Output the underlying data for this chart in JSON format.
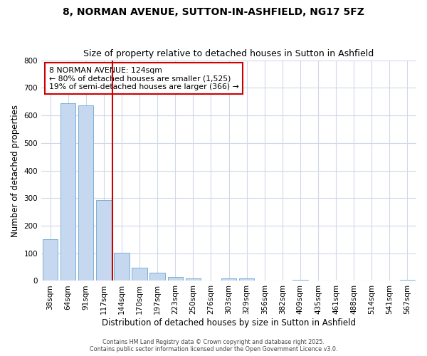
{
  "title1": "8, NORMAN AVENUE, SUTTON-IN-ASHFIELD, NG17 5FZ",
  "title2": "Size of property relative to detached houses in Sutton in Ashfield",
  "xlabel": "Distribution of detached houses by size in Sutton in Ashfield",
  "ylabel": "Number of detached properties",
  "categories": [
    "38sqm",
    "64sqm",
    "91sqm",
    "117sqm",
    "144sqm",
    "170sqm",
    "197sqm",
    "223sqm",
    "250sqm",
    "276sqm",
    "303sqm",
    "329sqm",
    "356sqm",
    "382sqm",
    "409sqm",
    "435sqm",
    "461sqm",
    "488sqm",
    "514sqm",
    "541sqm",
    "567sqm"
  ],
  "values": [
    150,
    645,
    635,
    293,
    103,
    48,
    30,
    13,
    8,
    0,
    8,
    8,
    0,
    0,
    3,
    0,
    0,
    0,
    0,
    0,
    5
  ],
  "bar_color": "#c5d8f0",
  "bar_edge_color": "#7bafd4",
  "red_line_x": 3.5,
  "annotation_line1": "8 NORMAN AVENUE: 124sqm",
  "annotation_line2": "← 80% of detached houses are smaller (1,525)",
  "annotation_line3": "19% of semi-detached houses are larger (366) →",
  "annotation_box_facecolor": "white",
  "annotation_box_edgecolor": "#cc0000",
  "ylim": [
    0,
    800
  ],
  "yticks": [
    0,
    100,
    200,
    300,
    400,
    500,
    600,
    700,
    800
  ],
  "fig_background": "#ffffff",
  "plot_background": "#ffffff",
  "grid_color": "#d0d8e8",
  "footer": "Contains HM Land Registry data © Crown copyright and database right 2025.\nContains public sector information licensed under the Open Government Licence v3.0."
}
